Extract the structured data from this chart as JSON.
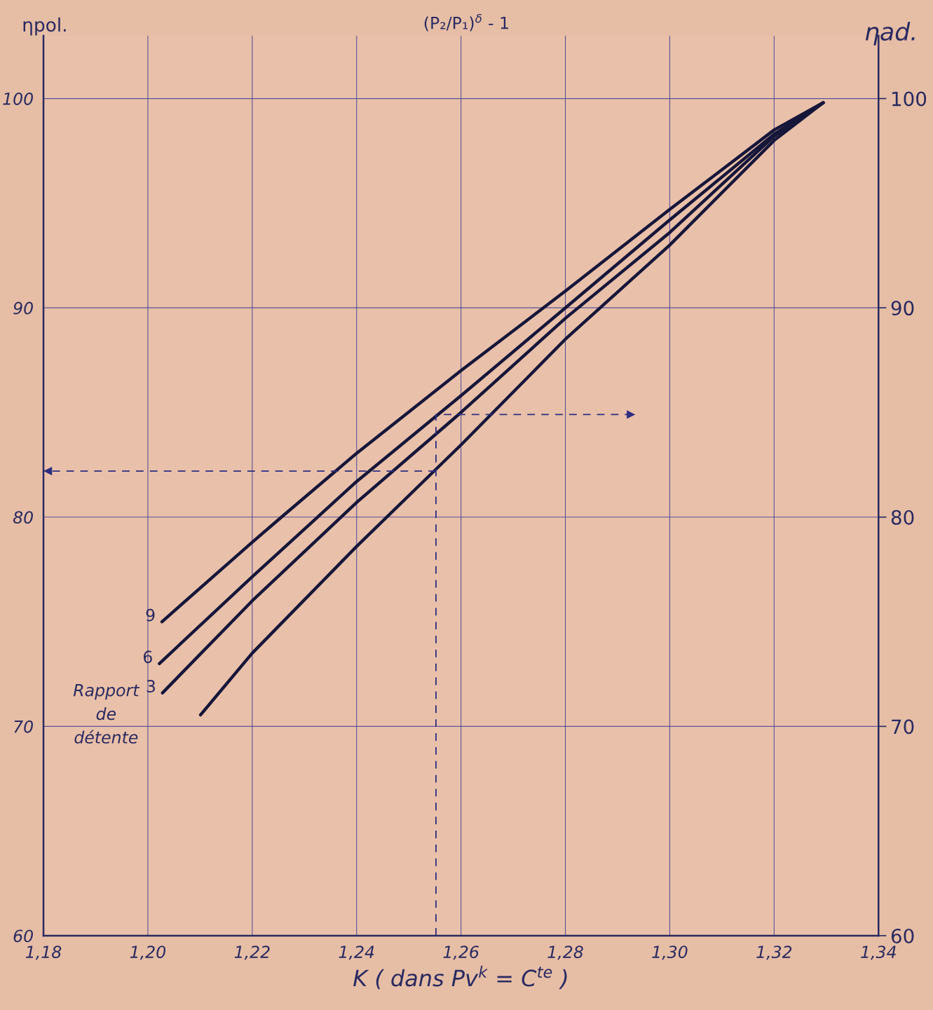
{
  "chart_data": {
    "type": "line",
    "title": "(P₂/P₁)$^{δ}$ - 1",
    "xlabel": "K ( dans Pv$^{k}$ = C$^{te}$ )",
    "ylabel": "ηpol.",
    "y2label": "ηad.",
    "annotations": [
      "Rapport\nde\ndétente"
    ],
    "series": [
      {
        "name": "9",
        "color": "#16163a",
        "x": [
          1.2027,
          1.22,
          1.2256,
          1.24,
          1.26,
          1.28,
          1.3,
          1.32,
          1.3294
        ],
        "values": [
          75.0,
          78.8,
          80.0,
          83.05,
          87.0,
          90.8,
          94.7,
          98.5,
          99.8
        ]
      },
      {
        "name": "6",
        "color": "#16163a",
        "x": [
          1.2022,
          1.22,
          1.24,
          1.26,
          1.28,
          1.3,
          1.32,
          1.3294
        ],
        "values": [
          73.0,
          77.15,
          81.7,
          85.8,
          90.0,
          94.2,
          98.3,
          99.8
        ]
      },
      {
        "name": "3",
        "color": "#16163a",
        "x": [
          1.2028,
          1.22,
          1.24,
          1.26,
          1.28,
          1.3,
          1.32,
          1.3294
        ],
        "values": [
          71.6,
          76.0,
          80.7,
          85.0,
          89.5,
          93.6,
          98.2,
          99.8
        ]
      },
      {
        "color": "#16163a",
        "x": [
          1.2101,
          1.22,
          1.24,
          1.26,
          1.28,
          1.3,
          1.32,
          1.3294
        ],
        "values": [
          70.55,
          73.5,
          78.6,
          83.45,
          88.5,
          93.0,
          98.0,
          99.8
        ]
      },
      {
        "color": "#2e2e80",
        "line_style": "dashed",
        "x": [
          1.2552,
          1.2552,
          1.2934
        ],
        "values": [
          60,
          84.9,
          84.9
        ]
      },
      {
        "color": "#2e2e80",
        "line_style": "dashed",
        "x": [
          1.2552,
          1.18
        ],
        "values": [
          82.2,
          82.2
        ]
      }
    ],
    "xlim": [
      1.18,
      1.34
    ],
    "ylim": [
      60,
      103
    ],
    "xticks": [
      {
        "value": 1.18,
        "label": "1,18"
      },
      {
        "value": 1.2,
        "label": "1,20"
      },
      {
        "value": 1.22,
        "label": "1,22"
      },
      {
        "value": 1.24,
        "label": "1,24"
      },
      {
        "value": 1.26,
        "label": "1,26"
      },
      {
        "value": 1.28,
        "label": "1,28"
      },
      {
        "value": 1.3,
        "label": "1,30"
      },
      {
        "value": 1.32,
        "label": "1,32"
      },
      {
        "value": 1.34,
        "label": "1,34"
      }
    ],
    "yticks": [
      60,
      70,
      80,
      90,
      100
    ],
    "y2lim": [
      60,
      103
    ],
    "y2ticks": [
      60,
      70,
      80,
      90,
      100
    ],
    "grid": true,
    "legend": false,
    "marker": "none",
    "line_style": "solid"
  }
}
